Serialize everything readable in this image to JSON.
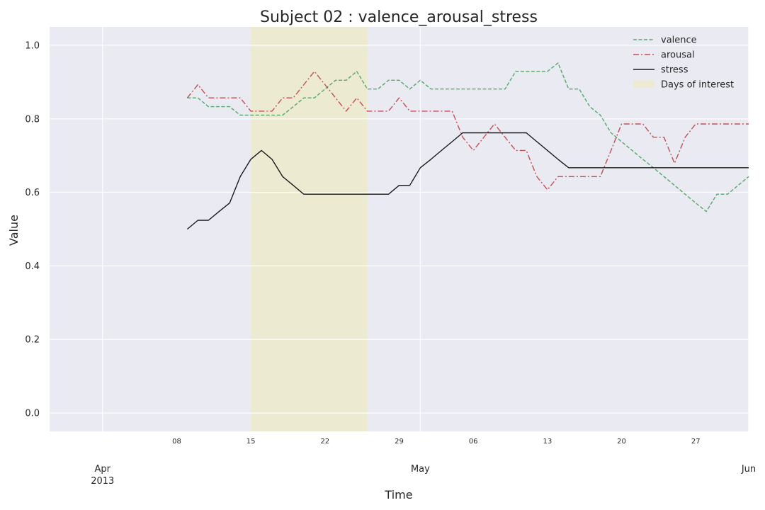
{
  "chart_data": {
    "type": "line",
    "title": "Subject 02 : valence_arousal_stress",
    "xlabel": "Time",
    "ylabel": "Value",
    "xlim": [
      "2013-03-27",
      "2013-06-01"
    ],
    "ylim": [
      -0.05,
      1.05
    ],
    "grid": true,
    "legend": "top-right",
    "y_ticks": [
      "0.0",
      "0.2",
      "0.4",
      "0.6",
      "0.8",
      "1.0"
    ],
    "x_major_ticks": [
      {
        "date": "2013-04-01",
        "label": "Apr",
        "sublabel": "2013"
      },
      {
        "date": "2013-05-01",
        "label": "May",
        "sublabel": ""
      },
      {
        "date": "2013-06-01",
        "label": "Jun",
        "sublabel": ""
      }
    ],
    "x_minor_ticks": [
      {
        "date": "2013-04-08",
        "label": "08"
      },
      {
        "date": "2013-04-15",
        "label": "15"
      },
      {
        "date": "2013-04-22",
        "label": "22"
      },
      {
        "date": "2013-04-29",
        "label": "29"
      },
      {
        "date": "2013-05-06",
        "label": "06"
      },
      {
        "date": "2013-05-13",
        "label": "13"
      },
      {
        "date": "2013-05-20",
        "label": "20"
      },
      {
        "date": "2013-05-27",
        "label": "27"
      }
    ],
    "highlight": {
      "name": "Days of interest",
      "start": "2013-04-15",
      "end": "2013-04-26",
      "color": "#ecebd1"
    },
    "series": [
      {
        "name": "valence",
        "color": "#55a868",
        "dash": "dashed",
        "points": [
          [
            "2013-04-09",
            0.857
          ],
          [
            "2013-04-10",
            0.857
          ],
          [
            "2013-04-11",
            0.833
          ],
          [
            "2013-04-12",
            0.833
          ],
          [
            "2013-04-13",
            0.833
          ],
          [
            "2013-04-14",
            0.81
          ],
          [
            "2013-04-15",
            0.81
          ],
          [
            "2013-04-16",
            0.81
          ],
          [
            "2013-04-17",
            0.81
          ],
          [
            "2013-04-18",
            0.81
          ],
          [
            "2013-04-19",
            0.833
          ],
          [
            "2013-04-20",
            0.857
          ],
          [
            "2013-04-21",
            0.857
          ],
          [
            "2013-04-22",
            0.881
          ],
          [
            "2013-04-23",
            0.905
          ],
          [
            "2013-04-24",
            0.905
          ],
          [
            "2013-04-25",
            0.929
          ],
          [
            "2013-04-26",
            0.881
          ],
          [
            "2013-04-27",
            0.881
          ],
          [
            "2013-04-28",
            0.905
          ],
          [
            "2013-04-29",
            0.905
          ],
          [
            "2013-04-30",
            0.881
          ],
          [
            "2013-05-01",
            0.905
          ],
          [
            "2013-05-02",
            0.881
          ],
          [
            "2013-05-03",
            0.881
          ],
          [
            "2013-05-04",
            0.881
          ],
          [
            "2013-05-05",
            0.881
          ],
          [
            "2013-05-06",
            0.881
          ],
          [
            "2013-05-07",
            0.881
          ],
          [
            "2013-05-08",
            0.881
          ],
          [
            "2013-05-09",
            0.881
          ],
          [
            "2013-05-10",
            0.929
          ],
          [
            "2013-05-11",
            0.929
          ],
          [
            "2013-05-12",
            0.929
          ],
          [
            "2013-05-13",
            0.929
          ],
          [
            "2013-05-14",
            0.952
          ],
          [
            "2013-05-15",
            0.881
          ],
          [
            "2013-05-16",
            0.881
          ],
          [
            "2013-05-17",
            0.833
          ],
          [
            "2013-05-18",
            0.81
          ],
          [
            "2013-05-19",
            0.762
          ],
          [
            "2013-05-20",
            0.738
          ],
          [
            "2013-05-21",
            0.714
          ],
          [
            "2013-05-22",
            0.69
          ],
          [
            "2013-05-23",
            0.667
          ],
          [
            "2013-05-24",
            0.643
          ],
          [
            "2013-05-25",
            0.619
          ],
          [
            "2013-05-26",
            0.595
          ],
          [
            "2013-05-27",
            0.571
          ],
          [
            "2013-05-28",
            0.548
          ],
          [
            "2013-05-29",
            0.595
          ],
          [
            "2013-05-30",
            0.595
          ],
          [
            "2013-05-31",
            0.619
          ],
          [
            "2013-06-01",
            0.643
          ]
        ]
      },
      {
        "name": "arousal",
        "color": "#c44e52",
        "dash": "dashdot",
        "points": [
          [
            "2013-04-09",
            0.857
          ],
          [
            "2013-04-10",
            0.893
          ],
          [
            "2013-04-11",
            0.857
          ],
          [
            "2013-04-12",
            0.857
          ],
          [
            "2013-04-13",
            0.857
          ],
          [
            "2013-04-14",
            0.857
          ],
          [
            "2013-04-15",
            0.821
          ],
          [
            "2013-04-16",
            0.821
          ],
          [
            "2013-04-17",
            0.821
          ],
          [
            "2013-04-18",
            0.857
          ],
          [
            "2013-04-19",
            0.857
          ],
          [
            "2013-04-20",
            0.893
          ],
          [
            "2013-04-21",
            0.929
          ],
          [
            "2013-04-22",
            0.893
          ],
          [
            "2013-04-23",
            0.857
          ],
          [
            "2013-04-24",
            0.821
          ],
          [
            "2013-04-25",
            0.857
          ],
          [
            "2013-04-26",
            0.821
          ],
          [
            "2013-04-27",
            0.821
          ],
          [
            "2013-04-28",
            0.821
          ],
          [
            "2013-04-29",
            0.857
          ],
          [
            "2013-04-30",
            0.821
          ],
          [
            "2013-05-01",
            0.821
          ],
          [
            "2013-05-02",
            0.821
          ],
          [
            "2013-05-03",
            0.821
          ],
          [
            "2013-05-04",
            0.821
          ],
          [
            "2013-05-05",
            0.75
          ],
          [
            "2013-05-06",
            0.714
          ],
          [
            "2013-05-07",
            0.75
          ],
          [
            "2013-05-08",
            0.786
          ],
          [
            "2013-05-09",
            0.75
          ],
          [
            "2013-05-10",
            0.714
          ],
          [
            "2013-05-11",
            0.714
          ],
          [
            "2013-05-12",
            0.643
          ],
          [
            "2013-05-13",
            0.607
          ],
          [
            "2013-05-14",
            0.643
          ],
          [
            "2013-05-15",
            0.643
          ],
          [
            "2013-05-16",
            0.643
          ],
          [
            "2013-05-17",
            0.643
          ],
          [
            "2013-05-18",
            0.643
          ],
          [
            "2013-05-19",
            0.714
          ],
          [
            "2013-05-20",
            0.786
          ],
          [
            "2013-05-21",
            0.786
          ],
          [
            "2013-05-22",
            0.786
          ],
          [
            "2013-05-23",
            0.75
          ],
          [
            "2013-05-24",
            0.75
          ],
          [
            "2013-05-25",
            0.679
          ],
          [
            "2013-05-26",
            0.75
          ],
          [
            "2013-05-27",
            0.786
          ],
          [
            "2013-05-28",
            0.786
          ],
          [
            "2013-05-29",
            0.786
          ],
          [
            "2013-05-30",
            0.786
          ],
          [
            "2013-05-31",
            0.786
          ],
          [
            "2013-06-01",
            0.786
          ]
        ]
      },
      {
        "name": "stress",
        "color": "#1a1a1a",
        "dash": "solid",
        "points": [
          [
            "2013-04-09",
            0.5
          ],
          [
            "2013-04-10",
            0.524
          ],
          [
            "2013-04-11",
            0.524
          ],
          [
            "2013-04-12",
            0.548
          ],
          [
            "2013-04-13",
            0.571
          ],
          [
            "2013-04-14",
            0.643
          ],
          [
            "2013-04-15",
            0.69
          ],
          [
            "2013-04-16",
            0.714
          ],
          [
            "2013-04-17",
            0.69
          ],
          [
            "2013-04-18",
            0.643
          ],
          [
            "2013-04-19",
            0.619
          ],
          [
            "2013-04-20",
            0.595
          ],
          [
            "2013-04-21",
            0.595
          ],
          [
            "2013-04-22",
            0.595
          ],
          [
            "2013-04-23",
            0.595
          ],
          [
            "2013-04-24",
            0.595
          ],
          [
            "2013-04-25",
            0.595
          ],
          [
            "2013-04-26",
            0.595
          ],
          [
            "2013-04-27",
            0.595
          ],
          [
            "2013-04-28",
            0.595
          ],
          [
            "2013-04-29",
            0.619
          ],
          [
            "2013-04-30",
            0.619
          ],
          [
            "2013-05-01",
            0.667
          ],
          [
            "2013-05-02",
            0.69
          ],
          [
            "2013-05-03",
            0.714
          ],
          [
            "2013-05-04",
            0.738
          ],
          [
            "2013-05-05",
            0.762
          ],
          [
            "2013-05-06",
            0.762
          ],
          [
            "2013-05-07",
            0.762
          ],
          [
            "2013-05-08",
            0.762
          ],
          [
            "2013-05-09",
            0.762
          ],
          [
            "2013-05-10",
            0.762
          ],
          [
            "2013-05-11",
            0.762
          ],
          [
            "2013-05-12",
            0.738
          ],
          [
            "2013-05-13",
            0.714
          ],
          [
            "2013-05-14",
            0.69
          ],
          [
            "2013-05-15",
            0.667
          ],
          [
            "2013-05-16",
            0.667
          ],
          [
            "2013-05-17",
            0.667
          ],
          [
            "2013-05-18",
            0.667
          ],
          [
            "2013-05-19",
            0.667
          ],
          [
            "2013-05-20",
            0.667
          ],
          [
            "2013-05-21",
            0.667
          ],
          [
            "2013-05-22",
            0.667
          ],
          [
            "2013-05-23",
            0.667
          ],
          [
            "2013-05-24",
            0.667
          ],
          [
            "2013-05-25",
            0.667
          ],
          [
            "2013-05-26",
            0.667
          ],
          [
            "2013-05-27",
            0.667
          ],
          [
            "2013-05-28",
            0.667
          ],
          [
            "2013-05-29",
            0.667
          ],
          [
            "2013-05-30",
            0.667
          ],
          [
            "2013-05-31",
            0.667
          ],
          [
            "2013-06-01",
            0.667
          ]
        ]
      }
    ]
  }
}
